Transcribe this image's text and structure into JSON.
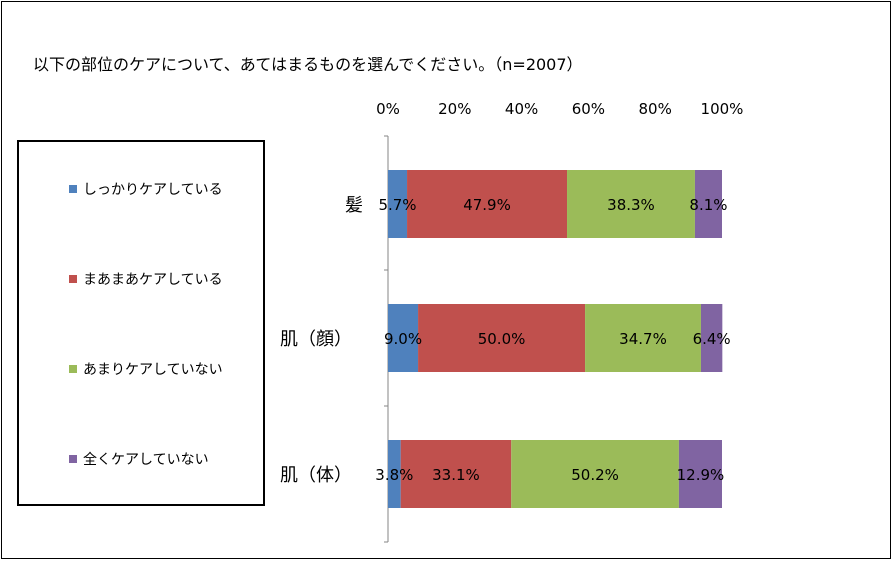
{
  "title": "以下の部位のケアについて、あてはまるものを選んでください。（n=2007）",
  "chart_data": {
    "type": "bar",
    "orientation": "horizontal",
    "stacked": "100%",
    "categories": [
      "髪",
      "肌（顔）",
      "肌（体）"
    ],
    "x_ticks": [
      "0%",
      "20%",
      "40%",
      "60%",
      "80%",
      "100%"
    ],
    "xlim": [
      0,
      100
    ],
    "legend_position": "left",
    "series": [
      {
        "name": "しっかりケアしている",
        "color": "#4F81BD",
        "values": [
          5.7,
          9.0,
          3.8
        ],
        "labels": [
          "5.7%",
          "9.0%",
          "3.8%"
        ]
      },
      {
        "name": "まあまあケアしている",
        "color": "#C0504D",
        "values": [
          47.9,
          50.0,
          33.1
        ],
        "labels": [
          "47.9%",
          "50.0%",
          "33.1%"
        ]
      },
      {
        "name": "あまりケアしていない",
        "color": "#9BBB59",
        "values": [
          38.3,
          34.7,
          50.2
        ],
        "labels": [
          "38.3%",
          "34.7%",
          "50.2%"
        ]
      },
      {
        "name": "全くケアしていない",
        "color": "#8064A2",
        "values": [
          8.1,
          6.4,
          12.9
        ],
        "labels": [
          "8.1%",
          "6.4%",
          "12.9%"
        ]
      }
    ]
  }
}
